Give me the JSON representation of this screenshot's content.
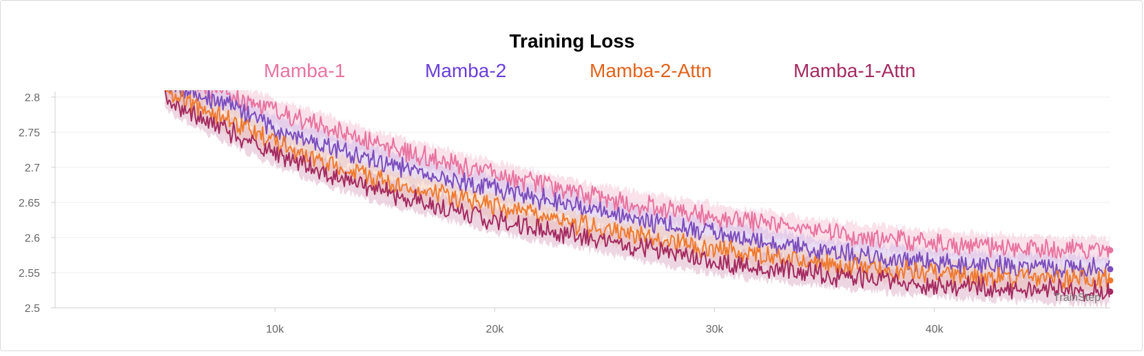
{
  "chart_data": {
    "type": "line",
    "title": "Training Loss",
    "xlabel": "TrainStep",
    "ylabel": "",
    "xlim": [
      0,
      48000
    ],
    "ylim": [
      2.5,
      2.8
    ],
    "x_ticks": [
      10000,
      20000,
      30000,
      40000
    ],
    "x_tick_labels": [
      "10k",
      "20k",
      "30k",
      "40k"
    ],
    "y_ticks": [
      2.5,
      2.55,
      2.6,
      2.65,
      2.7,
      2.75,
      2.8
    ],
    "y_tick_labels": [
      "2.5",
      "2.55",
      "2.6",
      "2.65",
      "2.7",
      "2.75",
      "2.8"
    ],
    "grid": true,
    "legend_position": "top-center",
    "x": [
      5000,
      6000,
      7000,
      8000,
      10000,
      12000,
      15000,
      20000,
      25000,
      30000,
      35000,
      40000,
      44000,
      48000
    ],
    "series": [
      {
        "name": "Mamba-1",
        "color": "#e8739f",
        "band_color": "#f5bcd0",
        "values": [
          2.83,
          2.82,
          2.81,
          2.8,
          2.78,
          2.76,
          2.73,
          2.69,
          2.655,
          2.63,
          2.607,
          2.592,
          2.585,
          2.582
        ]
      },
      {
        "name": "Mamba-2",
        "color": "#7c4dbd",
        "band_color": "#cdb8ea",
        "values": [
          2.82,
          2.81,
          2.8,
          2.79,
          2.755,
          2.735,
          2.705,
          2.67,
          2.635,
          2.605,
          2.58,
          2.565,
          2.558,
          2.555
        ]
      },
      {
        "name": "Mamba-2-Attn",
        "color": "#ef7a2e",
        "band_color": "#f7c7a6",
        "values": [
          2.81,
          2.795,
          2.78,
          2.765,
          2.735,
          2.71,
          2.68,
          2.645,
          2.61,
          2.585,
          2.563,
          2.548,
          2.542,
          2.539
        ]
      },
      {
        "name": "Mamba-1-Attn",
        "color": "#a42a60",
        "band_color": "#d7a4be",
        "values": [
          2.8,
          2.78,
          2.765,
          2.75,
          2.72,
          2.695,
          2.665,
          2.625,
          2.595,
          2.565,
          2.548,
          2.533,
          2.527,
          2.523
        ]
      }
    ]
  }
}
